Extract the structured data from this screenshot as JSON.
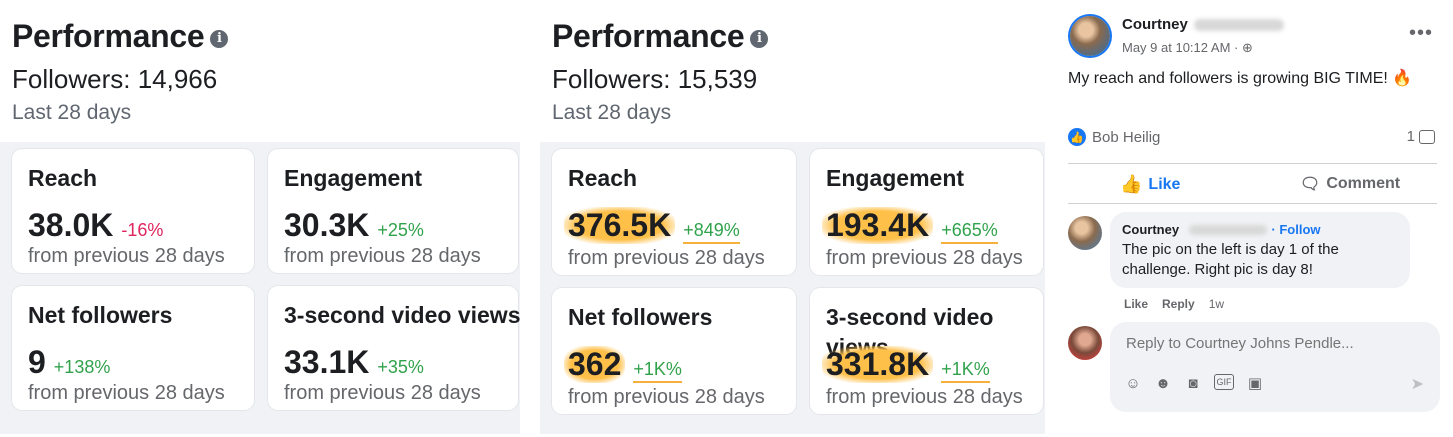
{
  "left": {
    "title": "Performance",
    "followers": "Followers: 14,966",
    "period": "Last 28 days",
    "cards": [
      {
        "title": "Reach",
        "value": "38.0K",
        "change": "-16%",
        "sub": "from previous 28 days"
      },
      {
        "title": "Engagement",
        "value": "30.3K",
        "change": "+25%",
        "sub": "from previous 28 days"
      },
      {
        "title": "Net followers",
        "value": "9",
        "change": "+138%",
        "sub": "from previous 28 days"
      },
      {
        "title": "3-second video views",
        "value": "33.1K",
        "change": "+35%",
        "sub": "from previous 28 days"
      }
    ]
  },
  "middle": {
    "title": "Performance",
    "followers": "Followers: 15,539",
    "period": "Last 28 days",
    "cards": [
      {
        "title": "Reach",
        "value": "376.5K",
        "change": "+849%",
        "sub": "from previous 28 days"
      },
      {
        "title": "Engagement",
        "value": "193.4K",
        "change": "+665%",
        "sub": "from previous 28 days"
      },
      {
        "title": "Net followers",
        "value": "362",
        "change": "+1K%",
        "sub": "from previous 28 days"
      },
      {
        "title": "3-second video views",
        "value": "331.8K",
        "change": "+1K%",
        "sub": "from previous 28 days"
      }
    ]
  },
  "post": {
    "author": "Courtney",
    "time": "May 9 at 10:12 AM · ",
    "text": "My reach and followers is growing BIG TIME! ",
    "reactor": "Bob Heilig",
    "comment_count": "1",
    "like_label": "Like",
    "comment_label": "Comment",
    "comment": {
      "author": "Courtney",
      "follow": "· Follow",
      "text": "The pic on the left is day 1 of the challenge. Right pic is day 8!",
      "like": "Like",
      "reply": "Reply",
      "age": "1w"
    },
    "reply_placeholder": "Reply to Courtney Johns Pendle..."
  },
  "icons": {
    "info": "info-icon",
    "more": "more-options-icon",
    "globe": "globe-icon",
    "fire": "fire-emoji-icon",
    "like": "thumbs-up-icon",
    "comment": "comment-icon",
    "send": "send-icon"
  },
  "colors": {
    "accent": "#1877f2",
    "positive": "#31a24c",
    "negative": "#e0245e",
    "highlight": "#ffc04a"
  }
}
